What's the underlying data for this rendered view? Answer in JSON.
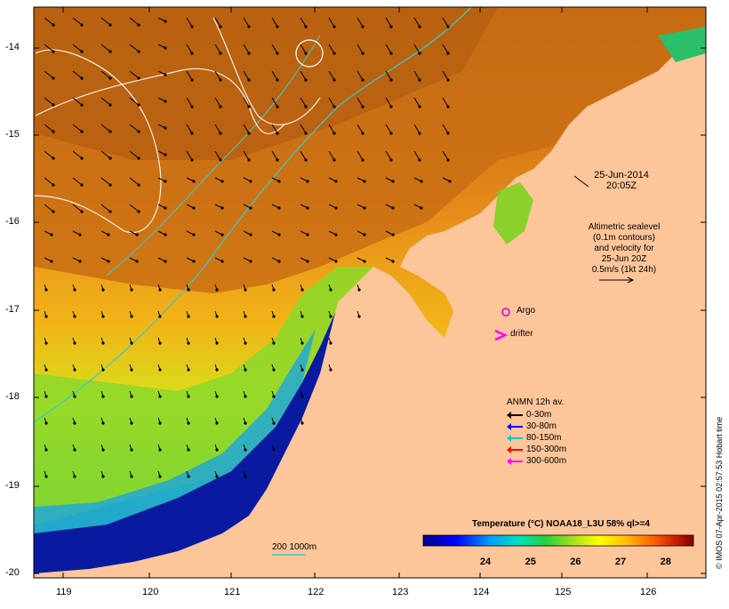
{
  "map": {
    "x_ticks": [
      "119",
      "120",
      "121",
      "122",
      "123",
      "124",
      "125",
      "126"
    ],
    "y_ticks": [
      "-14",
      "-15",
      "-16",
      "-17",
      "-18",
      "-19",
      "-20"
    ],
    "date_line1": "25-Jun-2014",
    "date_line2": "20:05Z",
    "altimetry_lines": [
      "Altimetric sealevel",
      "(0.1m contours)",
      "and velocity for",
      "25-Jun 20Z",
      "0.5m/s (1kt 24h)"
    ],
    "argo_label": "Argo",
    "drifter_label": "drifter",
    "scale_label": "200  1000m",
    "colors": {
      "land": "#fdc59a",
      "argo": "#d400d4",
      "drifter": "#ff00ff",
      "isobath": "#3ec7c7"
    }
  },
  "legend": {
    "title": "ANMN 12h av.",
    "items": [
      {
        "label": "0-30m",
        "color": "#000000"
      },
      {
        "label": "30-80m",
        "color": "#0000ff"
      },
      {
        "label": "80-150m",
        "color": "#00cccc"
      },
      {
        "label": "150-300m",
        "color": "#ff0000"
      },
      {
        "label": "300-600m",
        "color": "#ff00ff"
      }
    ]
  },
  "colorbar": {
    "title": "Temperature (°C) NOAA18_L3U 58% ql>=4",
    "ticks": [
      "24",
      "25",
      "26",
      "27",
      "28"
    ],
    "range": [
      22.6,
      28.6
    ]
  },
  "credit": "© IMOS 07-Apr-2015 02:57:53 Hobart time"
}
